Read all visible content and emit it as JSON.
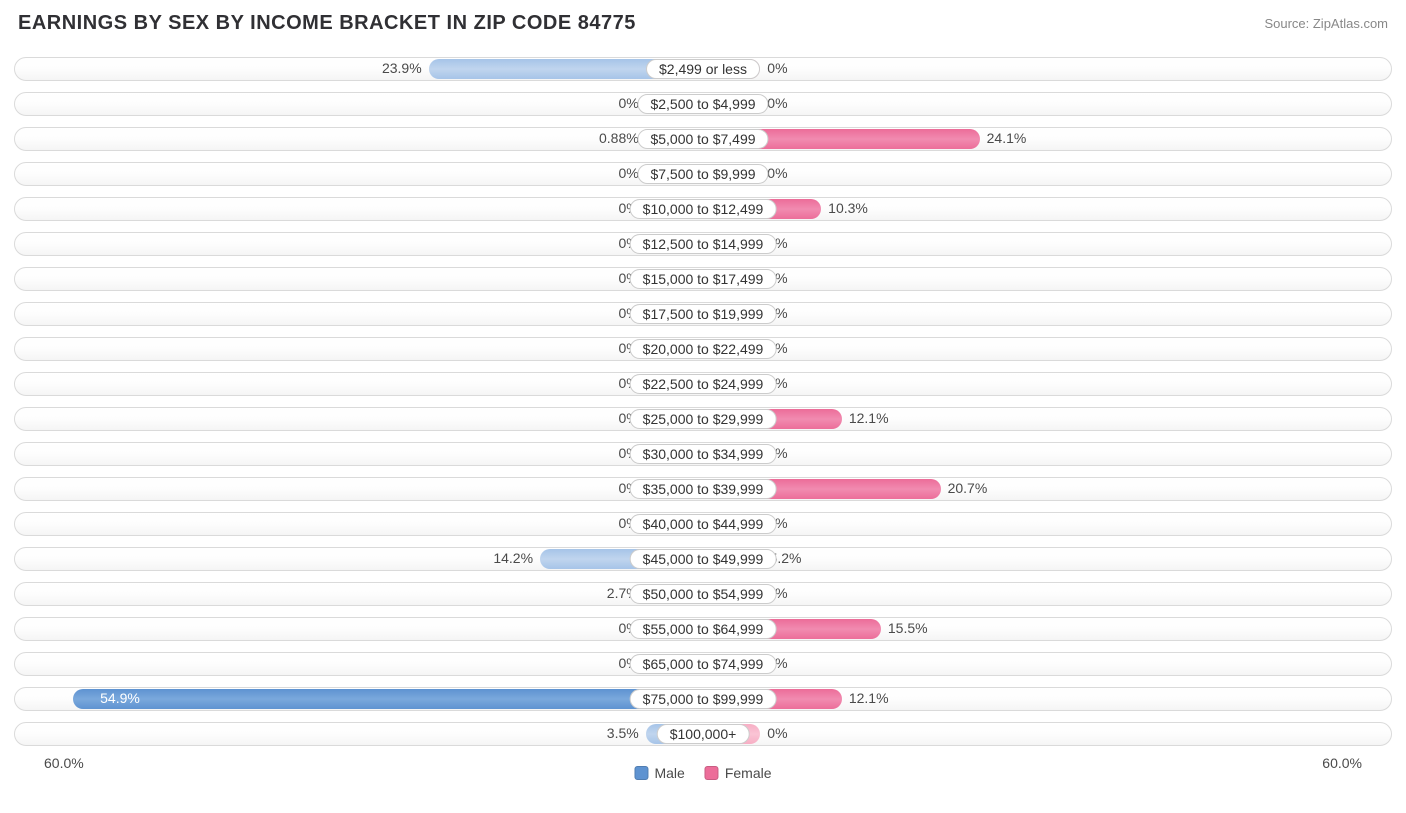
{
  "title": "EARNINGS BY SEX BY INCOME BRACKET IN ZIP CODE 84775",
  "source": "Source: ZipAtlas.com",
  "axis_max": 60.0,
  "axis_label_left": "60.0%",
  "axis_label_right": "60.0%",
  "min_bar_pct": 5.0,
  "colors": {
    "male_light": "#a6c4e8",
    "male_dark": "#5e93d1",
    "female_light": "#f7aec4",
    "female_dark": "#ec6d99",
    "sat_threshold": 50.0,
    "track_border": "#dadada",
    "text": "#4a4a4a",
    "title": "#303034",
    "source": "#888888",
    "background": "#ffffff"
  },
  "legend": {
    "male": "Male",
    "female": "Female"
  },
  "rows": [
    {
      "label": "$2,499 or less",
      "male": 23.9,
      "female": 0.0
    },
    {
      "label": "$2,500 to $4,999",
      "male": 0.0,
      "female": 0.0
    },
    {
      "label": "$5,000 to $7,499",
      "male": 0.88,
      "female": 24.1
    },
    {
      "label": "$7,500 to $9,999",
      "male": 0.0,
      "female": 0.0
    },
    {
      "label": "$10,000 to $12,499",
      "male": 0.0,
      "female": 10.3
    },
    {
      "label": "$12,500 to $14,999",
      "male": 0.0,
      "female": 0.0
    },
    {
      "label": "$15,000 to $17,499",
      "male": 0.0,
      "female": 0.0
    },
    {
      "label": "$17,500 to $19,999",
      "male": 0.0,
      "female": 0.0
    },
    {
      "label": "$20,000 to $22,499",
      "male": 0.0,
      "female": 0.0
    },
    {
      "label": "$22,500 to $24,999",
      "male": 0.0,
      "female": 0.0
    },
    {
      "label": "$25,000 to $29,999",
      "male": 0.0,
      "female": 12.1
    },
    {
      "label": "$30,000 to $34,999",
      "male": 0.0,
      "female": 0.0
    },
    {
      "label": "$35,000 to $39,999",
      "male": 0.0,
      "female": 20.7
    },
    {
      "label": "$40,000 to $44,999",
      "male": 0.0,
      "female": 0.0
    },
    {
      "label": "$45,000 to $49,999",
      "male": 14.2,
      "female": 5.2
    },
    {
      "label": "$50,000 to $54,999",
      "male": 2.7,
      "female": 0.0
    },
    {
      "label": "$55,000 to $64,999",
      "male": 0.0,
      "female": 15.5
    },
    {
      "label": "$65,000 to $74,999",
      "male": 0.0,
      "female": 0.0
    },
    {
      "label": "$75,000 to $99,999",
      "male": 54.9,
      "female": 12.1
    },
    {
      "label": "$100,000+",
      "male": 3.5,
      "female": 0.0
    }
  ]
}
